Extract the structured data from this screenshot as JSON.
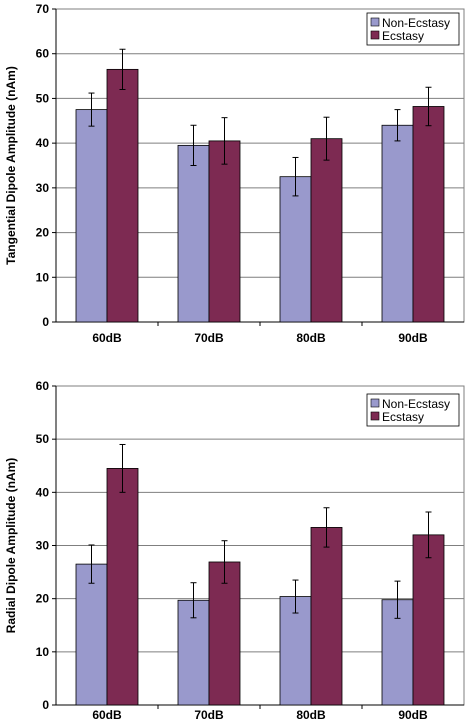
{
  "chart_data": [
    {
      "type": "bar",
      "ylabel": "Tangential Dipole Amplitude (nAm)",
      "categories": [
        "60dB",
        "70dB",
        "80dB",
        "90dB"
      ],
      "ylim": [
        0,
        70
      ],
      "yticks": [
        0,
        10,
        20,
        30,
        40,
        50,
        60,
        70
      ],
      "grid": true,
      "legend_position": "top-right",
      "series": [
        {
          "name": "Non-Ecstasy",
          "color": "#9999cc",
          "values": [
            47.5,
            39.5,
            32.5,
            44
          ],
          "errors": [
            3.7,
            4.5,
            4.3,
            3.5
          ]
        },
        {
          "name": "Ecstasy",
          "color": "#7d2a52",
          "values": [
            56.5,
            40.5,
            41,
            48.2
          ],
          "errors": [
            4.5,
            5.2,
            4.8,
            4.3
          ]
        }
      ]
    },
    {
      "type": "bar",
      "ylabel": "Radial Dipole Amplitude (nAm)",
      "categories": [
        "60dB",
        "70dB",
        "80dB",
        "90dB"
      ],
      "ylim": [
        0,
        60
      ],
      "yticks": [
        0,
        10,
        20,
        30,
        40,
        50,
        60
      ],
      "grid": true,
      "legend_position": "top-right",
      "series": [
        {
          "name": "Non-Ecstasy",
          "color": "#9999cc",
          "values": [
            26.5,
            19.7,
            20.4,
            19.8
          ],
          "errors": [
            3.6,
            3.3,
            3.1,
            3.5
          ]
        },
        {
          "name": "Ecstasy",
          "color": "#7d2a52",
          "values": [
            44.5,
            26.9,
            33.4,
            32
          ],
          "errors": [
            4.5,
            4.0,
            3.7,
            4.3
          ]
        }
      ]
    }
  ]
}
